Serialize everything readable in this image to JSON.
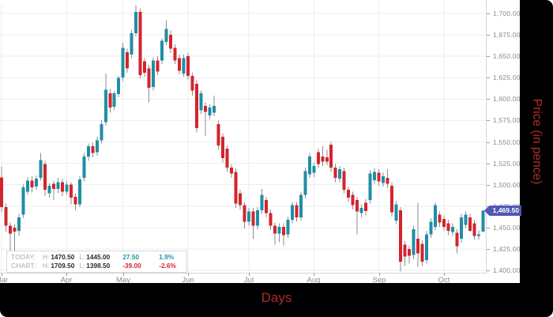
{
  "axes": {
    "x_title": "Days",
    "y_title": "Price (in pence)",
    "title_color": "#b12a2a"
  },
  "tooltip": {
    "rows": [
      {
        "label": "TODAY:",
        "h_label": "H:",
        "high": "1470.50",
        "l_label": "L:",
        "low": "1445.00",
        "change": "27.50",
        "change_pct": "1.9%",
        "direction": "up"
      },
      {
        "label": "CHART:",
        "h_label": "H:",
        "high": "1709.50",
        "l_label": "L:",
        "low": "1398.50",
        "change": "-39.00",
        "change_pct": "-2.6%",
        "direction": "down"
      }
    ]
  },
  "chart_data": {
    "type": "candlestick",
    "xlabel": "Days",
    "ylabel": "Price (in pence)",
    "grid": true,
    "legend_position": "none",
    "last_price_label": "1,469.50",
    "last_price_value": 1469.5,
    "y_axis_side": "right",
    "ylim": [
      1397,
      1716
    ],
    "y_ticks": [
      {
        "value": 1700,
        "label": "1,700.00"
      },
      {
        "value": 1675,
        "label": "1,675.00"
      },
      {
        "value": 1650,
        "label": "1,650.00"
      },
      {
        "value": 1625,
        "label": "1,625.00"
      },
      {
        "value": 1600,
        "label": "1,600.00"
      },
      {
        "value": 1575,
        "label": "1,575.00"
      },
      {
        "value": 1550,
        "label": "1,550.00"
      },
      {
        "value": 1525,
        "label": "1,525.00"
      },
      {
        "value": 1500,
        "label": "1,500.00"
      },
      {
        "value": 1475,
        "label": "1,475.00"
      },
      {
        "value": 1450,
        "label": "1,450.00"
      },
      {
        "value": 1425,
        "label": "1,425.00"
      },
      {
        "value": 1400,
        "label": "1,400.00"
      }
    ],
    "x_ticks": [
      {
        "index": 0,
        "label": "Mar"
      },
      {
        "index": 15,
        "label": "Apr"
      },
      {
        "index": 28,
        "label": "May"
      },
      {
        "index": 43,
        "label": "Jun"
      },
      {
        "index": 57,
        "label": "Jul"
      },
      {
        "index": 72,
        "label": "Aug"
      },
      {
        "index": 87,
        "label": "Sep"
      },
      {
        "index": 102,
        "label": "Oct"
      }
    ],
    "x_start": 2,
    "x_step": 5.49,
    "colors": {
      "up": "#1f8ea6",
      "down": "#d2252e",
      "wick": "#8c8c8c",
      "grid": "#ededed",
      "badge": "#4d58b4"
    },
    "candles_format": [
      "open",
      "high",
      "low",
      "close"
    ],
    "candles": [
      [
        1508.5,
        1521,
        1468,
        1474
      ],
      [
        1474,
        1478,
        1445,
        1452
      ],
      [
        1452,
        1456,
        1421,
        1443
      ],
      [
        1450,
        1454,
        1423,
        1445
      ],
      [
        1446,
        1466,
        1440,
        1462
      ],
      [
        1465,
        1500,
        1461,
        1497
      ],
      [
        1492,
        1509,
        1488,
        1505
      ],
      [
        1505,
        1510,
        1491,
        1497
      ],
      [
        1498,
        1511,
        1494,
        1507
      ],
      [
        1508,
        1537,
        1505,
        1529
      ],
      [
        1524,
        1528,
        1487,
        1494
      ],
      [
        1490,
        1502,
        1485,
        1499
      ],
      [
        1501,
        1505,
        1482,
        1495
      ],
      [
        1495,
        1508,
        1490,
        1503
      ],
      [
        1503,
        1507,
        1487,
        1492
      ],
      [
        1492,
        1504,
        1488,
        1500
      ],
      [
        1500,
        1503,
        1477,
        1485
      ],
      [
        1486,
        1490,
        1470,
        1477
      ],
      [
        1477,
        1510,
        1474,
        1506
      ],
      [
        1508,
        1537,
        1504,
        1533
      ],
      [
        1533,
        1548,
        1528,
        1545
      ],
      [
        1545,
        1549,
        1532,
        1537
      ],
      [
        1538,
        1556,
        1534,
        1552
      ],
      [
        1552,
        1576,
        1548,
        1571
      ],
      [
        1573,
        1630,
        1569,
        1611
      ],
      [
        1607,
        1612,
        1584,
        1590
      ],
      [
        1591,
        1609,
        1587,
        1607
      ],
      [
        1606,
        1627,
        1602,
        1625
      ],
      [
        1625,
        1666,
        1621,
        1660
      ],
      [
        1655,
        1659,
        1631,
        1636
      ],
      [
        1652,
        1681,
        1648,
        1677
      ],
      [
        1677,
        1709.5,
        1673,
        1702
      ],
      [
        1702,
        1706,
        1624,
        1628
      ],
      [
        1644,
        1648,
        1626,
        1631
      ],
      [
        1636,
        1640,
        1596,
        1613
      ],
      [
        1614,
        1649,
        1610,
        1645
      ],
      [
        1645,
        1650,
        1628,
        1632
      ],
      [
        1645,
        1671,
        1641,
        1668
      ],
      [
        1667,
        1692,
        1663,
        1682
      ],
      [
        1675,
        1680,
        1654,
        1659
      ],
      [
        1660,
        1664,
        1641,
        1645
      ],
      [
        1648,
        1652,
        1629,
        1633
      ],
      [
        1630,
        1652,
        1626,
        1648
      ],
      [
        1650,
        1654,
        1623,
        1627
      ],
      [
        1627,
        1631,
        1604,
        1610
      ],
      [
        1618,
        1622,
        1561,
        1566
      ],
      [
        1587,
        1610,
        1583,
        1607
      ],
      [
        1592,
        1596,
        1557,
        1585
      ],
      [
        1581,
        1594,
        1577,
        1590
      ],
      [
        1584,
        1604,
        1580,
        1592
      ],
      [
        1571,
        1575,
        1541,
        1546
      ],
      [
        1556,
        1560,
        1526,
        1531
      ],
      [
        1542,
        1546,
        1515,
        1520
      ],
      [
        1520,
        1524,
        1508,
        1513
      ],
      [
        1515,
        1519,
        1473,
        1478
      ],
      [
        1490,
        1494,
        1471,
        1476
      ],
      [
        1476,
        1480,
        1449,
        1457
      ],
      [
        1457,
        1473,
        1452,
        1469
      ],
      [
        1469,
        1473,
        1437,
        1452
      ],
      [
        1452,
        1474,
        1448,
        1470
      ],
      [
        1470,
        1495,
        1466,
        1488
      ],
      [
        1482,
        1486,
        1462,
        1467
      ],
      [
        1467,
        1471,
        1447,
        1452
      ],
      [
        1452,
        1456,
        1430,
        1443
      ],
      [
        1443,
        1455,
        1433,
        1451
      ],
      [
        1451,
        1455,
        1429,
        1441
      ],
      [
        1442,
        1463,
        1438,
        1459
      ],
      [
        1459,
        1480,
        1455,
        1476
      ],
      [
        1476,
        1480,
        1457,
        1462
      ],
      [
        1462,
        1492,
        1458,
        1488
      ],
      [
        1488,
        1520,
        1484,
        1516
      ],
      [
        1512,
        1537,
        1508,
        1533
      ],
      [
        1514,
        1526,
        1509,
        1522
      ],
      [
        1538,
        1542,
        1519,
        1524
      ],
      [
        1533,
        1545,
        1522,
        1527
      ],
      [
        1532,
        1541,
        1523,
        1527
      ],
      [
        1547,
        1550,
        1515,
        1520
      ],
      [
        1520,
        1524,
        1503,
        1508
      ],
      [
        1507,
        1522,
        1503,
        1518
      ],
      [
        1516,
        1520,
        1490,
        1494
      ],
      [
        1494,
        1498,
        1480,
        1485
      ],
      [
        1488,
        1492,
        1471,
        1476
      ],
      [
        1482,
        1486,
        1442,
        1469
      ],
      [
        1467,
        1477,
        1462,
        1473
      ],
      [
        1479,
        1483,
        1464,
        1469
      ],
      [
        1482,
        1517,
        1478,
        1513
      ],
      [
        1505,
        1519,
        1501,
        1515
      ],
      [
        1514,
        1518,
        1499,
        1504
      ],
      [
        1502,
        1514,
        1498,
        1510
      ],
      [
        1508,
        1518,
        1496,
        1501
      ],
      [
        1499,
        1503,
        1463,
        1468
      ],
      [
        1458,
        1481,
        1454,
        1477
      ],
      [
        1470,
        1474,
        1398.5,
        1410
      ],
      [
        1430,
        1434,
        1405,
        1416
      ],
      [
        1425,
        1429,
        1408,
        1417
      ],
      [
        1418,
        1452,
        1413,
        1448
      ],
      [
        1437,
        1479,
        1404,
        1420
      ],
      [
        1431,
        1435,
        1405,
        1410
      ],
      [
        1412,
        1446,
        1408,
        1442
      ],
      [
        1442,
        1461,
        1438,
        1457
      ],
      [
        1451,
        1479,
        1447,
        1476
      ],
      [
        1465,
        1469,
        1451,
        1456
      ],
      [
        1460,
        1464,
        1446,
        1451
      ],
      [
        1455,
        1459,
        1441,
        1446
      ],
      [
        1445,
        1455,
        1440,
        1451
      ],
      [
        1444,
        1448,
        1420,
        1428
      ],
      [
        1437,
        1466,
        1433,
        1462
      ],
      [
        1453,
        1469,
        1449,
        1465
      ],
      [
        1462,
        1466,
        1445,
        1446
      ],
      [
        1455,
        1459,
        1436,
        1440
      ],
      [
        1440,
        1447,
        1436,
        1442
      ],
      [
        1445,
        1470.5,
        1445,
        1469.5
      ]
    ]
  }
}
